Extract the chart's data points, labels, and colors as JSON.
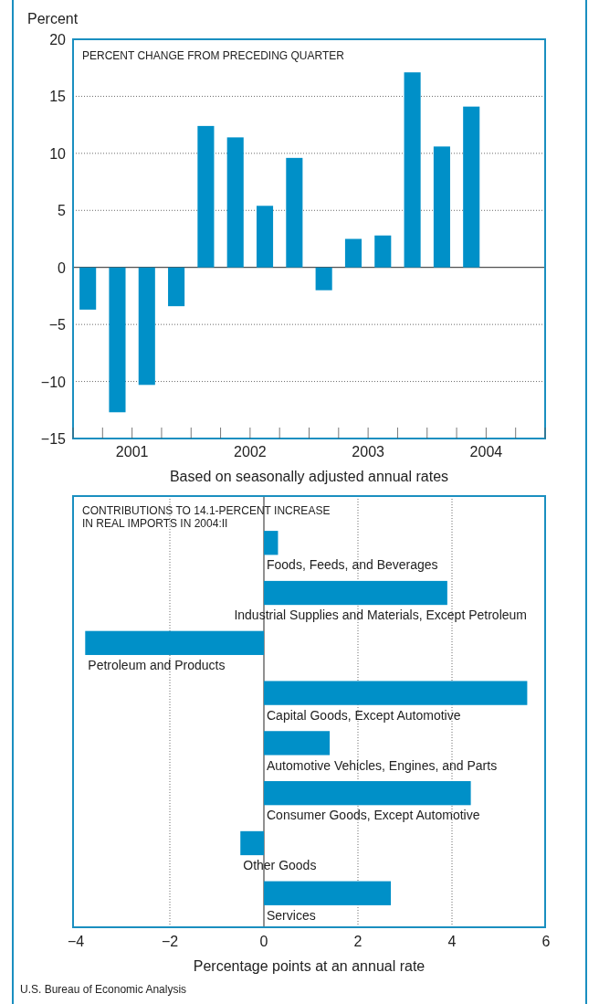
{
  "chart_data": [
    {
      "type": "bar",
      "title": "PERCENT CHANGE FROM PRECEDING QUARTER",
      "ylabel": "Percent",
      "xlabel": "Based on seasonally adjusted annual rates",
      "x": [
        2001.125,
        2001.375,
        2001.625,
        2001.875,
        2002.125,
        2002.375,
        2002.625,
        2002.875,
        2003.125,
        2003.375,
        2003.625,
        2003.875,
        2004.125,
        2004.375
      ],
      "values": [
        -3.7,
        -12.7,
        -10.3,
        -3.4,
        12.4,
        11.4,
        5.4,
        9.6,
        -2.0,
        2.5,
        2.8,
        17.1,
        10.6,
        14.1
      ],
      "color": "#0090c8",
      "xlim": [
        2001,
        2005
      ],
      "xticks": [
        {
          "value": 2001,
          "label": null
        },
        {
          "value": 2001.25,
          "label": null
        },
        {
          "value": 2001.5,
          "label": "2001"
        },
        {
          "value": 2001.75,
          "label": null
        },
        {
          "value": 2002,
          "label": null
        },
        {
          "value": 2002.25,
          "label": null
        },
        {
          "value": 2002.5,
          "label": "2002"
        },
        {
          "value": 2002.75,
          "label": null
        },
        {
          "value": 2003,
          "label": null
        },
        {
          "value": 2003.25,
          "label": null
        },
        {
          "value": 2003.5,
          "label": "2003"
        },
        {
          "value": 2003.75,
          "label": null
        },
        {
          "value": 2004,
          "label": null
        },
        {
          "value": 2004.25,
          "label": null
        },
        {
          "value": 2004.5,
          "label": "2004"
        },
        {
          "value": 2004.75,
          "label": null
        },
        {
          "value": 2005,
          "label": null
        }
      ],
      "ylim": [
        -15,
        20
      ],
      "yticks": [
        -15,
        -10,
        -5,
        0,
        5,
        10,
        15,
        20
      ],
      "grid": "y"
    },
    {
      "type": "bar",
      "orientation": "horizontal",
      "title": "CONTRIBUTIONS TO 14.1-PERCENT INCREASE\nIN REAL IMPORTS IN 2004:II",
      "xlabel": "Percentage points at an annual rate",
      "categories": [
        "Foods, Feeds, and Beverages",
        "Industrial Supplies and Materials, Except Petroleum",
        "Petroleum and Products",
        "Capital Goods, Except Automotive",
        "Automotive Vehicles, Engines, and Parts",
        "Consumer Goods, Except Automotive",
        "Other Goods",
        "Services"
      ],
      "values": [
        0.3,
        3.9,
        -3.8,
        5.6,
        1.4,
        4.4,
        -0.5,
        2.7
      ],
      "color": "#0090c8",
      "xlim": [
        -4,
        6
      ],
      "xticks": [
        -4,
        -2,
        0,
        2,
        4,
        6
      ],
      "grid": "x",
      "annotations": [
        "U.S. Bureau of Economic Analysis"
      ]
    }
  ]
}
